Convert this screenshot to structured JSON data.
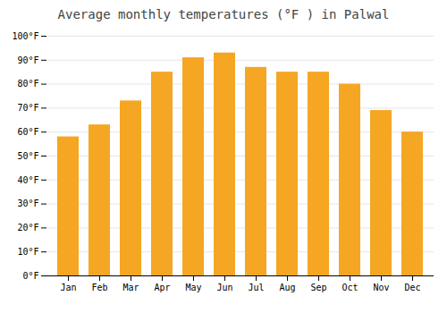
{
  "chart_data": {
    "type": "bar",
    "title": "Average monthly temperatures (°F ) in Palwal",
    "categories": [
      "Jan",
      "Feb",
      "Mar",
      "Apr",
      "May",
      "Jun",
      "Jul",
      "Aug",
      "Sep",
      "Oct",
      "Nov",
      "Dec"
    ],
    "values": [
      58,
      63,
      73,
      85,
      91,
      93,
      87,
      85,
      85,
      80,
      69,
      60
    ],
    "color": "#F5A623",
    "ylim": [
      0,
      100
    ],
    "yticks": [
      {
        "value": 0,
        "label": "0°F"
      },
      {
        "value": 10,
        "label": "10°F"
      },
      {
        "value": 20,
        "label": "20°F"
      },
      {
        "value": 30,
        "label": "30°F"
      },
      {
        "value": 40,
        "label": "40°F"
      },
      {
        "value": 50,
        "label": "50°F"
      },
      {
        "value": 60,
        "label": "60°F"
      },
      {
        "value": 70,
        "label": "70°F"
      },
      {
        "value": 80,
        "label": "80°F"
      },
      {
        "value": 90,
        "label": "90°F"
      },
      {
        "value": 100,
        "label": "100°F"
      }
    ],
    "grid": true
  }
}
